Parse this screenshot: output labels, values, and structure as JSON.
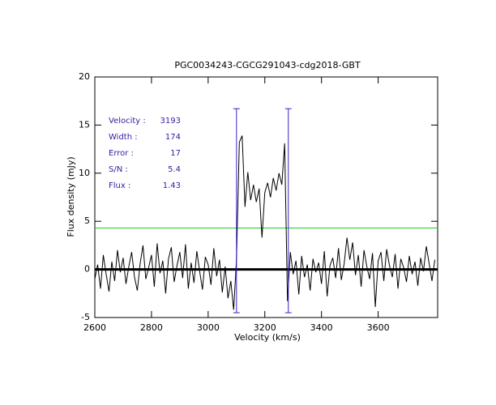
{
  "chart_data": {
    "type": "line",
    "title": "PGC0034243-CGCG291043-cdg2018-GBT",
    "xlabel": "Velocity (km/s)",
    "ylabel": "Flux density (mJy)",
    "x": [
      2600,
      2610,
      2620,
      2630,
      2640,
      2650,
      2660,
      2670,
      2680,
      2690,
      2700,
      2710,
      2720,
      2730,
      2740,
      2750,
      2760,
      2770,
      2780,
      2790,
      2800,
      2810,
      2820,
      2830,
      2840,
      2850,
      2860,
      2870,
      2880,
      2890,
      2900,
      2910,
      2920,
      2930,
      2940,
      2950,
      2960,
      2970,
      2980,
      2990,
      3000,
      3010,
      3020,
      3030,
      3040,
      3050,
      3060,
      3070,
      3080,
      3090,
      3100,
      3110,
      3120,
      3130,
      3140,
      3150,
      3160,
      3170,
      3180,
      3190,
      3200,
      3210,
      3220,
      3230,
      3240,
      3250,
      3260,
      3270,
      3280,
      3290,
      3300,
      3310,
      3320,
      3330,
      3340,
      3350,
      3360,
      3370,
      3380,
      3390,
      3400,
      3410,
      3420,
      3430,
      3440,
      3450,
      3460,
      3470,
      3480,
      3490,
      3500,
      3510,
      3520,
      3530,
      3540,
      3550,
      3560,
      3570,
      3580,
      3590,
      3600,
      3610,
      3620,
      3630,
      3640,
      3650,
      3660,
      3670,
      3680,
      3690,
      3700,
      3710,
      3720,
      3730,
      3740,
      3750,
      3760,
      3770,
      3780,
      3790,
      3800
    ],
    "values": [
      -1.0,
      0.5,
      -2.0,
      1.5,
      -0.5,
      -2.3,
      0.8,
      -1.2,
      2.0,
      -0.3,
      1.2,
      -1.5,
      0.3,
      1.8,
      -0.8,
      -2.2,
      0.6,
      2.5,
      -1.0,
      0.2,
      1.5,
      -1.8,
      2.7,
      -0.4,
      0.9,
      -2.5,
      1.1,
      2.3,
      -1.3,
      0.4,
      1.8,
      -0.9,
      2.6,
      -2.0,
      0.7,
      -1.4,
      1.9,
      -0.2,
      -2.1,
      1.3,
      0.5,
      -1.6,
      2.2,
      -0.7,
      1.0,
      -2.4,
      0.3,
      -3.0,
      -1.2,
      -4.2,
      1.0,
      13.2,
      13.9,
      6.5,
      10.1,
      7.2,
      8.8,
      7.0,
      8.4,
      3.3,
      8.0,
      9.0,
      7.5,
      9.5,
      8.2,
      10.0,
      8.8,
      13.1,
      -3.3,
      1.8,
      -0.5,
      0.9,
      -2.6,
      1.4,
      -0.8,
      0.5,
      -2.2,
      1.1,
      -0.3,
      0.7,
      -1.5,
      1.9,
      -2.8,
      0.4,
      1.2,
      -0.9,
      2.2,
      -1.1,
      0.6,
      3.3,
      1.0,
      2.8,
      -0.6,
      1.5,
      -1.8,
      2.0,
      0.3,
      -1.0,
      1.7,
      -3.9,
      0.9,
      1.8,
      -1.2,
      2.1,
      0.4,
      -0.8,
      1.6,
      -2.0,
      1.1,
      0.2,
      -1.3,
      1.4,
      -0.5,
      0.8,
      -1.7,
      1.2,
      -0.2,
      2.4,
      0.6,
      -1.2,
      1.0
    ],
    "color": "#000000",
    "xlim": [
      2600,
      3810
    ],
    "ylim": [
      -5,
      20
    ],
    "xticks": [
      2600,
      2800,
      3000,
      3200,
      3400,
      3600
    ],
    "yticks": [
      -5,
      0,
      5,
      10,
      15,
      20
    ],
    "baseline": 0,
    "threshold": 4.3,
    "threshold_color": "#22cc22",
    "window": [
      3100,
      3283
    ],
    "window_ylim": [
      -4.5,
      16.7
    ],
    "window_color": "#3a20c8",
    "annotations": [
      {
        "label": "Velocity :",
        "value": 3193
      },
      {
        "label": "Width :",
        "value": 174
      },
      {
        "label": "Error :",
        "value": 17
      },
      {
        "label": "S/N :",
        "value": 5.4
      },
      {
        "label": "Flux :",
        "value": 1.43
      }
    ],
    "annotation_color": "#3a1aa0"
  }
}
